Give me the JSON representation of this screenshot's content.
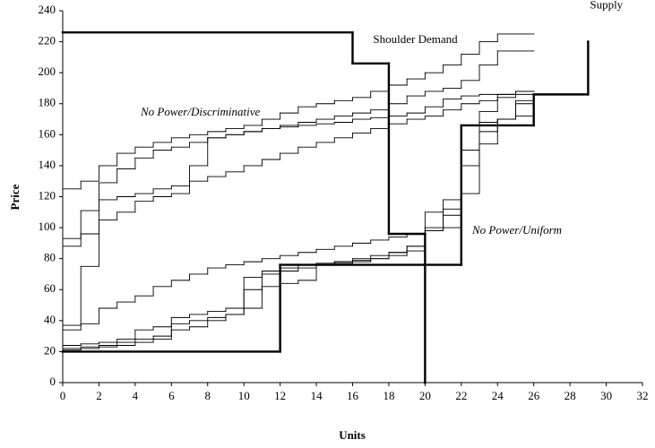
{
  "chart_data": {
    "type": "step",
    "xlabel": "Units",
    "ylabel": "Price",
    "xlim": [
      0,
      32
    ],
    "xticks": [
      0,
      2,
      4,
      6,
      8,
      10,
      12,
      14,
      16,
      18,
      20,
      22,
      24,
      26,
      28,
      30,
      32
    ],
    "ylim": [
      0,
      240
    ],
    "yticks": [
      0,
      20,
      40,
      60,
      80,
      100,
      120,
      140,
      160,
      180,
      200,
      220,
      240
    ],
    "grid": false,
    "annotations": [
      "No Power/Discriminative",
      "No Power/Uniform"
    ],
    "x": [
      0,
      1,
      2,
      3,
      4,
      5,
      6,
      7,
      8,
      9,
      10,
      11,
      12,
      13,
      14,
      15,
      16,
      17,
      18,
      19,
      20,
      21,
      22,
      23,
      24,
      25,
      26
    ],
    "series": [
      {
        "name": "Shoulder Demand",
        "color": "#000000",
        "linewidth": 2.4,
        "x": [
          0,
          16,
          18,
          20
        ],
        "values": [
          226,
          206,
          96,
          0
        ]
      },
      {
        "name": "Supply",
        "color": "#000000",
        "linewidth": 2.4,
        "x": [
          0,
          12,
          22,
          26,
          29
        ],
        "values": [
          20,
          76,
          166,
          186,
          220
        ]
      },
      {
        "color": "#000000",
        "linewidth": 0.9,
        "values": [
          125,
          130,
          140,
          148,
          152,
          155,
          158,
          160,
          162,
          164,
          166,
          170,
          174,
          178,
          180,
          182,
          184,
          188,
          192,
          196,
          200,
          205,
          212,
          220,
          225,
          225,
          225
        ]
      },
      {
        "color": "#000000",
        "linewidth": 0.9,
        "values": [
          93,
          111,
          129,
          138,
          145,
          150,
          152,
          155,
          158,
          160,
          162,
          164,
          166,
          168,
          170,
          172,
          174,
          176,
          180,
          185,
          188,
          190,
          195,
          205,
          214,
          214,
          214
        ]
      },
      {
        "color": "#000000",
        "linewidth": 0.9,
        "values": [
          88,
          96,
          118,
          120,
          122,
          125,
          127,
          130,
          133,
          136,
          140,
          144,
          148,
          152,
          155,
          158,
          161,
          164,
          167,
          170,
          172,
          176,
          180,
          182,
          186,
          188,
          188
        ]
      },
      {
        "color": "#000000",
        "linewidth": 0.9,
        "values": [
          37,
          75,
          105,
          110,
          117,
          120,
          122,
          140,
          158,
          160,
          162,
          164,
          165,
          166,
          167,
          168,
          170,
          171,
          172,
          174,
          178,
          183,
          185,
          186,
          186,
          188,
          188
        ]
      },
      {
        "color": "#000000",
        "linewidth": 0.9,
        "values": [
          34,
          38,
          48,
          52,
          56,
          62,
          66,
          70,
          74,
          76,
          78,
          80,
          82,
          84,
          86,
          88,
          90,
          92,
          94,
          96,
          98,
          100,
          150,
          175,
          184,
          186,
          186
        ]
      },
      {
        "color": "#000000",
        "linewidth": 0.9,
        "values": [
          24,
          25,
          26,
          28,
          34,
          36,
          42,
          44,
          46,
          48,
          68,
          70,
          72,
          74,
          76,
          78,
          80,
          82,
          84,
          88,
          110,
          118,
          166,
          168,
          170,
          172,
          172
        ]
      },
      {
        "color": "#000000",
        "linewidth": 0.9,
        "values": [
          22,
          23,
          24,
          26,
          28,
          30,
          38,
          40,
          42,
          44,
          60,
          62,
          64,
          66,
          76,
          77,
          78,
          80,
          82,
          85,
          100,
          108,
          122,
          154,
          170,
          180,
          180
        ]
      },
      {
        "color": "#000000",
        "linewidth": 0.9,
        "values": [
          21,
          22,
          23,
          24,
          26,
          28,
          34,
          36,
          40,
          44,
          48,
          72,
          74,
          76,
          77,
          78,
          79,
          80,
          84,
          88,
          98,
          112,
          140,
          162,
          170,
          182,
          182
        ]
      }
    ]
  }
}
